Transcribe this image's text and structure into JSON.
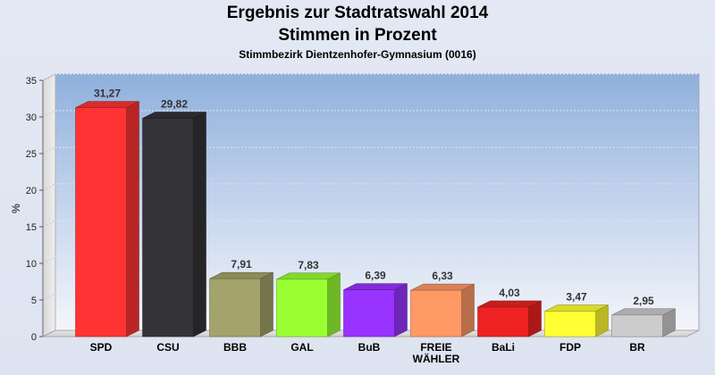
{
  "chart_data": {
    "type": "bar",
    "title": "Ergebnis zur Stadtratswahl 2014",
    "subtitle": "Stimmen in Prozent",
    "subtitle2": "Stimmbezirk Dientzenhofer-Gymnasium (0016)",
    "ylabel": "%",
    "xlabel": "",
    "ylim": [
      0,
      35
    ],
    "yticks": [
      "0",
      "5",
      "10",
      "15",
      "20",
      "25",
      "30",
      "35"
    ],
    "grid": true,
    "categories": [
      "SPD",
      "CSU",
      "BBB",
      "GAL",
      "BuB",
      "FREIE WÄHLER",
      "BaLi",
      "FDP",
      "BR"
    ],
    "category_lines": [
      [
        "SPD"
      ],
      [
        "CSU"
      ],
      [
        "BBB"
      ],
      [
        "GAL"
      ],
      [
        "BuB"
      ],
      [
        "FREIE",
        "WÄHLER"
      ],
      [
        "BaLi"
      ],
      [
        "FDP"
      ],
      [
        "BR"
      ]
    ],
    "values": [
      31.27,
      29.82,
      7.91,
      7.83,
      6.39,
      6.33,
      4.03,
      3.47,
      2.95
    ],
    "value_labels": [
      "31,27",
      "29,82",
      "7,91",
      "7,83",
      "6,39",
      "6,33",
      "4,03",
      "3,47",
      "2,95"
    ],
    "colors": [
      "#ff3333",
      "#333338",
      "#a3a36b",
      "#99ff33",
      "#9933ff",
      "#ff9966",
      "#ee2222",
      "#ffff33",
      "#cccccc"
    ]
  }
}
